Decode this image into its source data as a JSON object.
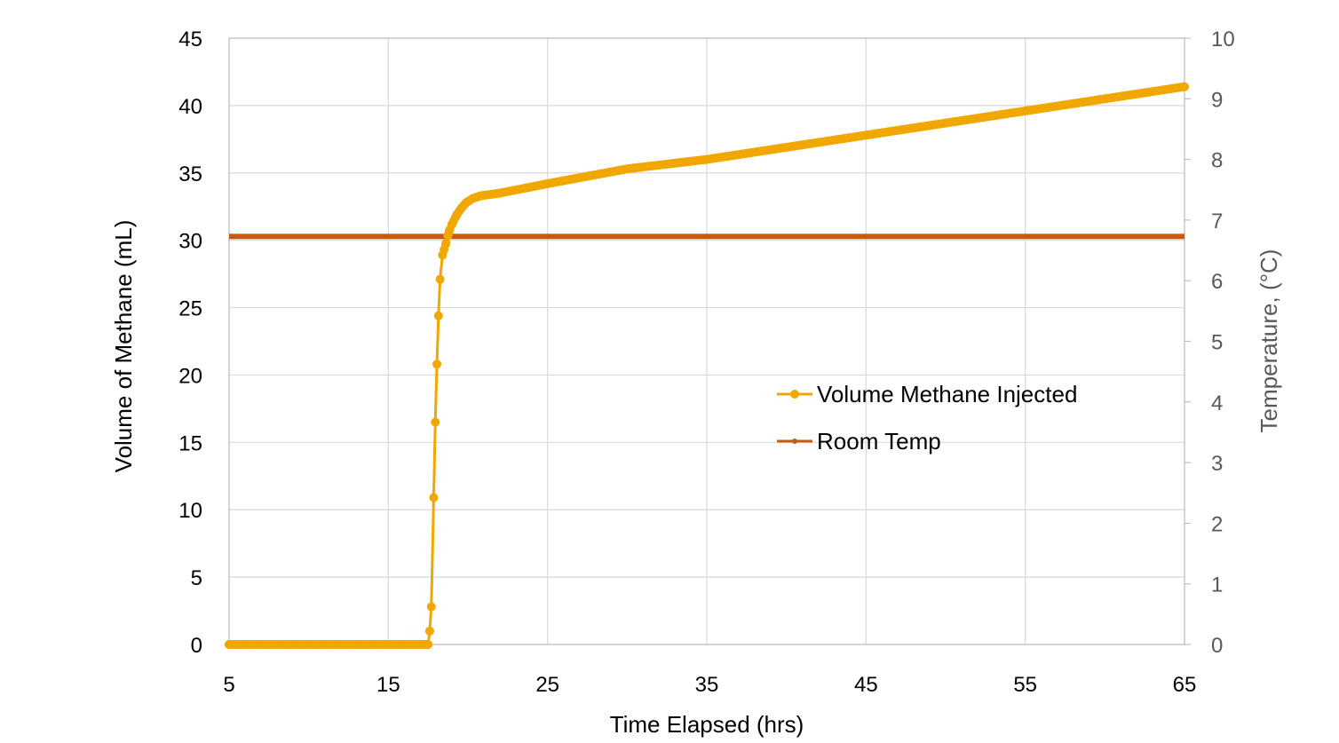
{
  "chart_data": {
    "type": "line",
    "xlabel": "Time Elapsed (hrs)",
    "ylabel": "Volume of Methane (mL)",
    "y2label": "Temperature, (°C)",
    "xlim": [
      5,
      65
    ],
    "ylim": [
      0,
      45
    ],
    "y2lim": [
      0,
      10
    ],
    "xticks": [
      5,
      15,
      25,
      35,
      45,
      55,
      65
    ],
    "yticks": [
      0,
      5,
      10,
      15,
      20,
      25,
      30,
      35,
      40,
      45
    ],
    "y2ticks": [
      0,
      1,
      2,
      3,
      4,
      5,
      6,
      7,
      8,
      9,
      10
    ],
    "grid": true,
    "legend_position": "center-right",
    "series": [
      {
        "name": "Volume Methane Injected",
        "axis": "left",
        "color": "#F0A800",
        "x": [
          5,
          6,
          7,
          8,
          9,
          10,
          11,
          12,
          13,
          14,
          15,
          16,
          17,
          17.5,
          17.6,
          17.7,
          17.85,
          17.95,
          18.05,
          18.15,
          18.25,
          18.4,
          18.6,
          18.8,
          19.0,
          19.3,
          19.6,
          19.9,
          20.3,
          20.8,
          22,
          25,
          30,
          35,
          40,
          45,
          50,
          55,
          60,
          65
        ],
        "y": [
          0,
          0,
          0,
          0,
          0,
          0,
          0,
          0,
          0,
          0,
          0,
          0,
          0,
          0,
          1.0,
          2.8,
          10.9,
          16.5,
          20.8,
          24.4,
          27.1,
          28.9,
          29.7,
          30.6,
          31.2,
          31.9,
          32.4,
          32.8,
          33.1,
          33.3,
          33.5,
          34.2,
          35.3,
          36.0,
          36.9,
          37.8,
          38.7,
          39.6,
          40.5,
          41.4
        ]
      },
      {
        "name": "Room Temp",
        "axis": "right",
        "color": "#C55A11",
        "x": [
          5,
          65
        ],
        "y": [
          6.73,
          6.73
        ]
      }
    ]
  }
}
